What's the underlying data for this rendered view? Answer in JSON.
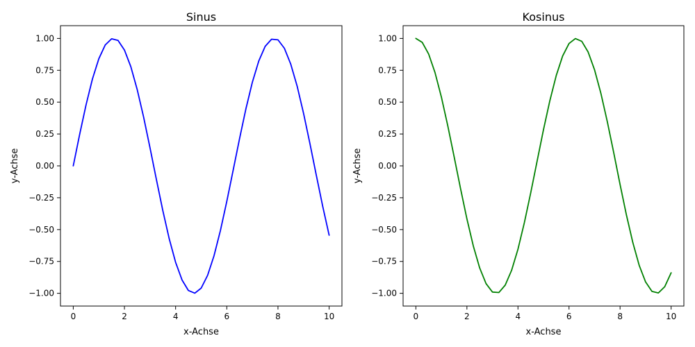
{
  "chart_data": [
    {
      "type": "line",
      "title": "Sinus",
      "xlabel": "x-Achse",
      "ylabel": "y-Achse",
      "xlim": [
        -0.5,
        10.5
      ],
      "ylim": [
        -1.1,
        1.1
      ],
      "xticks": [
        0,
        2,
        4,
        6,
        8,
        10
      ],
      "xtick_labels": [
        "0",
        "2",
        "4",
        "6",
        "8",
        "10"
      ],
      "yticks": [
        -1.0,
        -0.75,
        -0.5,
        -0.25,
        0.0,
        0.25,
        0.5,
        0.75,
        1.0
      ],
      "ytick_labels": [
        "−1.00",
        "−0.75",
        "−0.50",
        "−0.25",
        "0.00",
        "0.25",
        "0.50",
        "0.75",
        "1.00"
      ],
      "grid": false,
      "legend": false,
      "series": [
        {
          "color": "#0000ff",
          "x": [
            0,
            0.25,
            0.5,
            0.75,
            1,
            1.25,
            1.5,
            1.75,
            2,
            2.25,
            2.5,
            2.75,
            3,
            3.25,
            3.5,
            3.75,
            4,
            4.25,
            4.5,
            4.75,
            5,
            5.25,
            5.5,
            5.75,
            6,
            6.25,
            6.5,
            6.75,
            7,
            7.25,
            7.5,
            7.75,
            8,
            8.25,
            8.5,
            8.75,
            9,
            9.25,
            9.5,
            9.75,
            10
          ],
          "y": [
            0,
            0.247,
            0.479,
            0.682,
            0.841,
            0.949,
            0.997,
            0.984,
            0.909,
            0.778,
            0.598,
            0.382,
            0.141,
            -0.108,
            -0.351,
            -0.572,
            -0.757,
            -0.895,
            -0.978,
            -0.999,
            -0.959,
            -0.859,
            -0.706,
            -0.508,
            -0.279,
            -0.033,
            0.215,
            0.45,
            0.657,
            0.823,
            0.938,
            0.994,
            0.989,
            0.923,
            0.798,
            0.625,
            0.412,
            0.174,
            -0.075,
            -0.319,
            -0.544
          ]
        }
      ]
    },
    {
      "type": "line",
      "title": "Kosinus",
      "xlabel": "x-Achse",
      "ylabel": "y-Achse",
      "xlim": [
        -0.5,
        10.5
      ],
      "ylim": [
        -1.1,
        1.1
      ],
      "xticks": [
        0,
        2,
        4,
        6,
        8,
        10
      ],
      "xtick_labels": [
        "0",
        "2",
        "4",
        "6",
        "8",
        "10"
      ],
      "yticks": [
        -1.0,
        -0.75,
        -0.5,
        -0.25,
        0.0,
        0.25,
        0.5,
        0.75,
        1.0
      ],
      "ytick_labels": [
        "−1.00",
        "−0.75",
        "−0.50",
        "−0.25",
        "0.00",
        "0.25",
        "0.50",
        "0.75",
        "1.00"
      ],
      "grid": false,
      "legend": false,
      "series": [
        {
          "color": "#008000",
          "x": [
            0,
            0.25,
            0.5,
            0.75,
            1,
            1.25,
            1.5,
            1.75,
            2,
            2.25,
            2.5,
            2.75,
            3,
            3.25,
            3.5,
            3.75,
            4,
            4.25,
            4.5,
            4.75,
            5,
            5.25,
            5.5,
            5.75,
            6,
            6.25,
            6.5,
            6.75,
            7,
            7.25,
            7.5,
            7.75,
            8,
            8.25,
            8.5,
            8.75,
            9,
            9.25,
            9.5,
            9.75,
            10
          ],
          "y": [
            1,
            0.969,
            0.878,
            0.732,
            0.54,
            0.315,
            0.071,
            -0.178,
            -0.416,
            -0.628,
            -0.801,
            -0.924,
            -0.99,
            -0.994,
            -0.936,
            -0.82,
            -0.654,
            -0.446,
            -0.211,
            0.037,
            0.284,
            0.512,
            0.709,
            0.862,
            0.96,
            0.999,
            0.977,
            0.893,
            0.754,
            0.568,
            0.347,
            0.105,
            -0.146,
            -0.386,
            -0.602,
            -0.781,
            -0.911,
            -0.985,
            -0.997,
            -0.948,
            -0.839
          ]
        }
      ]
    }
  ]
}
